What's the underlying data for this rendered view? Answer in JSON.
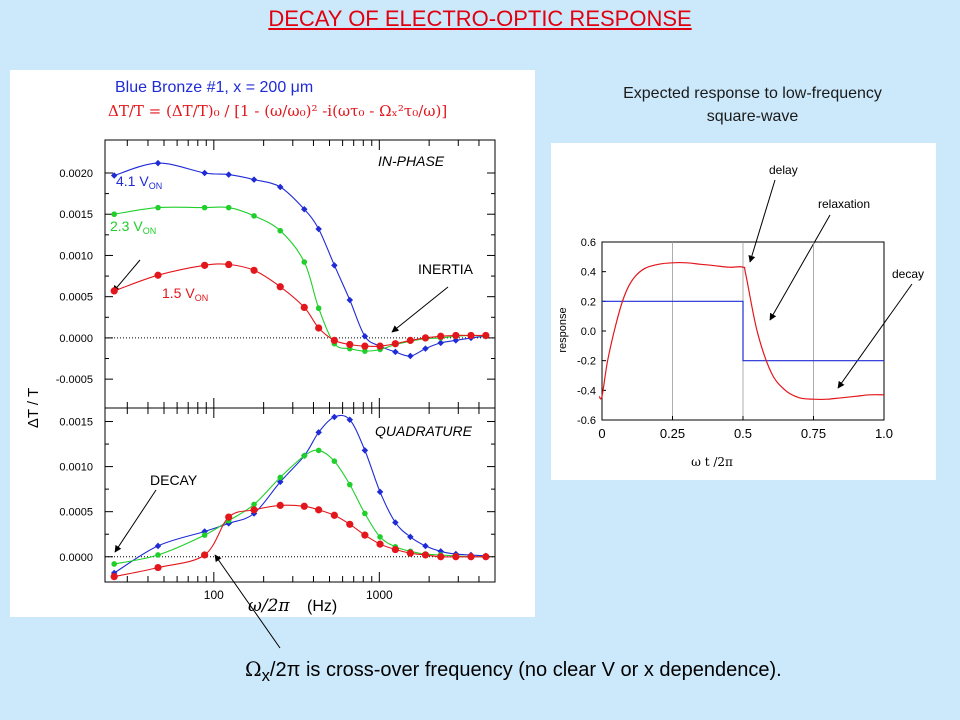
{
  "slide_title": "DECAY OF ELECTRO-OPTIC RESPONSE",
  "left_plot": {
    "header_line1": "Blue Bronze #1,  x = 200 μm",
    "header_line2": "ΔT/T = (ΔT/T)₀ / [1 - (ω/ω₀)² -i(ωτ₀ - Ωₓ²τ₀/ω)]",
    "ylabel": "ΔT / T",
    "xlabel_symbol": "ω/2π",
    "xlabel_unit": "(Hz)",
    "x_tick_labels": [
      "100",
      "1000"
    ],
    "top_tick_labels": [
      "0.0020",
      "0.0015",
      "0.0010",
      "0.0005",
      "0.0000",
      "-0.0005"
    ],
    "bottom_tick_labels": [
      "0.0015",
      "0.0010",
      "0.0005",
      "0.0000"
    ],
    "inphase_label": "IN-PHASE",
    "quadrature_label": "QUADRATURE",
    "inertia_label": "INERTIA",
    "decay_label": "DECAY",
    "voltage_labels": [
      "4.1 V",
      "2.3 V",
      "1.5 V"
    ],
    "voltage_subscript": "ON"
  },
  "right_plot": {
    "heading_line1": "Expected response to low-frequency",
    "heading_line2": "square-wave",
    "ylabel": "response",
    "xlabel": "ω t /2π",
    "x_tick_labels": [
      "0",
      "0.25",
      "0.5",
      "0.75",
      "1.0"
    ],
    "y_tick_labels": [
      "0.6",
      "0.4",
      "0.2",
      "0.0",
      "-0.2",
      "-0.4",
      "-0.6"
    ],
    "annotations": [
      "delay",
      "relaxation",
      "decay"
    ]
  },
  "caption": {
    "symbol": "Ω",
    "symbol_sub": "x",
    "rest": "/2π is cross-over frequency (no clear V or x dependence)."
  },
  "colors": {
    "title": "#e1000f",
    "blue": "#1f2bd6",
    "green": "#1fcf2a",
    "red": "#e3161c",
    "background": "#cce9fb"
  },
  "chart_data": [
    {
      "type": "scatter",
      "panel": "in-phase",
      "xscale": "log",
      "xlim": [
        22,
        5000
      ],
      "ylim": [
        -0.00085,
        0.0024
      ],
      "x": [
        25,
        46,
        88,
        123,
        175,
        252,
        352,
        430,
        535,
        663,
        818,
        1010,
        1250,
        1540,
        1900,
        2350,
        2900,
        3580,
        4400
      ],
      "series": [
        {
          "name": "4.1 V",
          "color": "blue",
          "values": [
            0.00197,
            0.00212,
            0.002,
            0.00198,
            0.00192,
            0.00183,
            0.00156,
            0.00132,
            0.00088,
            0.00046,
            2e-05,
            -0.0001,
            -0.00017,
            -0.00022,
            -0.00013,
            -6e-05,
            -3e-05,
            0.0,
            2e-05
          ]
        },
        {
          "name": "2.3 V",
          "color": "green",
          "values": [
            0.0015,
            0.00158,
            0.00158,
            0.00158,
            0.00148,
            0.0013,
            0.00092,
            0.00036,
            -7e-05,
            -0.00013,
            -0.00016,
            -0.00014,
            -8e-05,
            -4e-05,
            -1e-05,
            0.0,
            2e-05,
            3e-05,
            2e-05
          ]
        },
        {
          "name": "1.5 V",
          "color": "red",
          "values": [
            0.00057,
            0.00076,
            0.00088,
            0.00089,
            0.00082,
            0.00062,
            0.00037,
            0.00012,
            -3e-05,
            -8e-05,
            -0.0001,
            -0.0001,
            -7e-05,
            -3e-05,
            0.0,
            2e-05,
            3e-05,
            3e-05,
            3e-05
          ]
        }
      ]
    },
    {
      "type": "scatter",
      "panel": "quadrature",
      "xscale": "log",
      "xlim": [
        22,
        5000
      ],
      "ylim": [
        -0.00028,
        0.00165
      ],
      "x": [
        25,
        46,
        88,
        123,
        175,
        252,
        352,
        430,
        535,
        663,
        818,
        1010,
        1250,
        1540,
        1900,
        2350,
        2900,
        3580,
        4400
      ],
      "series": [
        {
          "name": "4.1 V",
          "color": "blue",
          "values": [
            -0.00018,
            0.00012,
            0.00028,
            0.00037,
            0.00048,
            0.00083,
            0.00112,
            0.00138,
            0.00155,
            0.00152,
            0.00118,
            0.00072,
            0.00038,
            0.00022,
            0.00012,
            6e-05,
            3e-05,
            2e-05,
            1e-05
          ]
        },
        {
          "name": "2.3 V",
          "color": "green",
          "values": [
            -8e-05,
            2e-05,
            0.00024,
            0.0004,
            0.00058,
            0.00088,
            0.00112,
            0.00118,
            0.00106,
            0.0008,
            0.00048,
            0.00022,
            0.00011,
            6e-05,
            3e-05,
            2e-05,
            1e-05,
            0.0,
            0.0
          ]
        },
        {
          "name": "1.5 V",
          "color": "red",
          "values": [
            -0.00022,
            -0.00012,
            2e-05,
            0.00044,
            0.00052,
            0.00057,
            0.00056,
            0.00052,
            0.00046,
            0.00036,
            0.00024,
            0.00014,
            8e-05,
            4e-05,
            2e-05,
            0.0,
            0.0,
            0.0,
            0.0
          ]
        }
      ]
    },
    {
      "type": "line",
      "panel": "expected-response",
      "xlim": [
        0,
        1.0
      ],
      "ylim": [
        -0.6,
        0.6
      ],
      "series": [
        {
          "name": "square-wave",
          "color": "blue",
          "x": [
            0,
            0.5,
            0.5,
            1.0
          ],
          "values": [
            0.2,
            0.2,
            -0.2,
            -0.2
          ]
        },
        {
          "name": "response",
          "color": "red",
          "x": [
            -0.01,
            0.0,
            0.02,
            0.05,
            0.08,
            0.11,
            0.15,
            0.2,
            0.25,
            0.3,
            0.35,
            0.4,
            0.45,
            0.5,
            0.51,
            0.55,
            0.6,
            0.65,
            0.7,
            0.75,
            0.8,
            0.85,
            0.9,
            0.95,
            1.0
          ],
          "values": [
            -0.44,
            -0.44,
            -0.2,
            0.05,
            0.24,
            0.35,
            0.42,
            0.45,
            0.46,
            0.46,
            0.45,
            0.44,
            0.43,
            0.43,
            0.38,
            0.0,
            -0.28,
            -0.4,
            -0.45,
            -0.46,
            -0.46,
            -0.45,
            -0.44,
            -0.43,
            -0.43
          ]
        }
      ]
    }
  ]
}
